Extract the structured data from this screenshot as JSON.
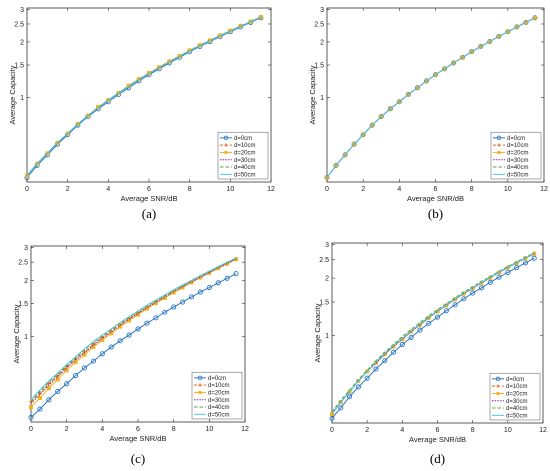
{
  "colors": {
    "d0": "#2a78c2",
    "d10": "#e8641e",
    "d20": "#f2b21a",
    "d30": "#7e2f8e",
    "d40": "#59a63a",
    "d50": "#4dc8ea"
  },
  "chart_data": [
    {
      "type": "line",
      "caption": "(a)",
      "xlabel": "Average SNR/dB",
      "ylabel": "Average Capacity",
      "xlim": [
        0,
        12
      ],
      "ylim": [
        0.35,
        3.05
      ],
      "y_scale": "log",
      "xticks": [
        0,
        2,
        4,
        6,
        8,
        10,
        12
      ],
      "yticks": [
        1,
        1.5,
        2,
        2.5,
        3
      ],
      "legend_position": "bottom-right",
      "x": [
        0,
        0.5,
        1,
        1.5,
        2,
        2.5,
        3,
        3.5,
        4,
        4.5,
        5,
        5.5,
        6,
        6.5,
        7,
        7.5,
        8,
        8.5,
        9,
        9.5,
        10,
        10.5,
        11,
        11.5
      ],
      "series": [
        {
          "name": "d=0cm",
          "values": [
            0.37,
            0.43,
            0.49,
            0.56,
            0.63,
            0.71,
            0.79,
            0.87,
            0.95,
            1.04,
            1.13,
            1.23,
            1.33,
            1.43,
            1.54,
            1.65,
            1.77,
            1.89,
            2.01,
            2.14,
            2.27,
            2.41,
            2.55,
            2.7
          ]
        },
        {
          "name": "d=10cm",
          "values": [
            0.38,
            0.44,
            0.5,
            0.57,
            0.64,
            0.72,
            0.8,
            0.89,
            0.97,
            1.06,
            1.16,
            1.26,
            1.36,
            1.46,
            1.57,
            1.68,
            1.8,
            1.92,
            2.04,
            2.17,
            2.3,
            2.44,
            2.58,
            2.73
          ]
        },
        {
          "name": "d=20cm",
          "values": [
            0.38,
            0.44,
            0.5,
            0.57,
            0.64,
            0.72,
            0.8,
            0.89,
            0.97,
            1.06,
            1.16,
            1.26,
            1.36,
            1.46,
            1.57,
            1.68,
            1.8,
            1.92,
            2.04,
            2.17,
            2.3,
            2.44,
            2.58,
            2.73
          ]
        },
        {
          "name": "d=30cm",
          "values": [
            0.38,
            0.44,
            0.5,
            0.57,
            0.64,
            0.72,
            0.8,
            0.88,
            0.97,
            1.06,
            1.15,
            1.25,
            1.35,
            1.45,
            1.56,
            1.67,
            1.79,
            1.91,
            2.03,
            2.16,
            2.29,
            2.43,
            2.57,
            2.72
          ]
        },
        {
          "name": "d=40cm",
          "values": [
            0.38,
            0.44,
            0.5,
            0.57,
            0.64,
            0.72,
            0.8,
            0.88,
            0.97,
            1.06,
            1.15,
            1.25,
            1.35,
            1.45,
            1.56,
            1.67,
            1.79,
            1.91,
            2.03,
            2.16,
            2.29,
            2.43,
            2.57,
            2.72
          ]
        },
        {
          "name": "d=50cm",
          "values": [
            0.38,
            0.44,
            0.5,
            0.57,
            0.64,
            0.72,
            0.8,
            0.88,
            0.97,
            1.06,
            1.15,
            1.25,
            1.35,
            1.45,
            1.56,
            1.67,
            1.79,
            1.91,
            2.03,
            2.16,
            2.29,
            2.43,
            2.57,
            2.72
          ]
        }
      ]
    },
    {
      "type": "line",
      "caption": "(b)",
      "xlabel": "Average SNR/dB",
      "ylabel": "Average Capacity",
      "xlim": [
        0,
        12
      ],
      "ylim": [
        0.35,
        3.05
      ],
      "y_scale": "log",
      "xticks": [
        0,
        2,
        4,
        6,
        8,
        10,
        12
      ],
      "yticks": [
        1,
        1.5,
        2,
        2.5,
        3
      ],
      "legend_position": "bottom-right",
      "x": [
        0,
        0.5,
        1,
        1.5,
        2,
        2.5,
        3,
        3.5,
        4,
        4.5,
        5,
        5.5,
        6,
        6.5,
        7,
        7.5,
        8,
        8.5,
        9,
        9.5,
        10,
        10.5,
        11,
        11.5
      ],
      "series": [
        {
          "name": "d=0cm",
          "values": [
            0.37,
            0.43,
            0.49,
            0.56,
            0.63,
            0.71,
            0.79,
            0.87,
            0.95,
            1.04,
            1.13,
            1.23,
            1.33,
            1.43,
            1.54,
            1.65,
            1.77,
            1.89,
            2.01,
            2.14,
            2.27,
            2.41,
            2.55,
            2.7
          ]
        },
        {
          "name": "d=10cm",
          "values": [
            0.37,
            0.43,
            0.49,
            0.56,
            0.63,
            0.71,
            0.79,
            0.87,
            0.95,
            1.04,
            1.13,
            1.23,
            1.33,
            1.43,
            1.54,
            1.65,
            1.77,
            1.89,
            2.01,
            2.14,
            2.27,
            2.41,
            2.55,
            2.7
          ]
        },
        {
          "name": "d=20cm",
          "values": [
            0.37,
            0.43,
            0.49,
            0.56,
            0.63,
            0.71,
            0.79,
            0.87,
            0.95,
            1.04,
            1.13,
            1.23,
            1.33,
            1.43,
            1.54,
            1.65,
            1.77,
            1.89,
            2.01,
            2.14,
            2.27,
            2.41,
            2.55,
            2.7
          ]
        },
        {
          "name": "d=30cm",
          "values": [
            0.37,
            0.43,
            0.49,
            0.56,
            0.63,
            0.71,
            0.79,
            0.87,
            0.95,
            1.04,
            1.13,
            1.23,
            1.33,
            1.43,
            1.54,
            1.65,
            1.77,
            1.89,
            2.01,
            2.14,
            2.27,
            2.41,
            2.55,
            2.7
          ]
        },
        {
          "name": "d=40cm",
          "values": [
            0.37,
            0.43,
            0.49,
            0.56,
            0.63,
            0.71,
            0.79,
            0.87,
            0.95,
            1.04,
            1.13,
            1.23,
            1.33,
            1.43,
            1.54,
            1.65,
            1.77,
            1.89,
            2.01,
            2.14,
            2.27,
            2.41,
            2.55,
            2.7
          ]
        },
        {
          "name": "d=50cm",
          "values": [
            0.37,
            0.43,
            0.49,
            0.56,
            0.63,
            0.71,
            0.79,
            0.87,
            0.95,
            1.04,
            1.13,
            1.23,
            1.33,
            1.43,
            1.54,
            1.65,
            1.77,
            1.89,
            2.01,
            2.14,
            2.27,
            2.41,
            2.55,
            2.7
          ]
        }
      ]
    },
    {
      "type": "line",
      "caption": "(c)",
      "xlabel": "Average SNR/dB",
      "ylabel": "Average Capacity",
      "xlim": [
        0,
        12
      ],
      "ylim": [
        0.35,
        3.05
      ],
      "y_scale": "log",
      "xticks": [
        0,
        2,
        4,
        6,
        8,
        10,
        12
      ],
      "yticks": [
        1,
        1.5,
        2,
        2.5,
        3
      ],
      "legend_position": "bottom-right",
      "x": [
        0,
        0.5,
        1,
        1.5,
        2,
        2.5,
        3,
        3.5,
        4,
        4.5,
        5,
        5.5,
        6,
        6.5,
        7,
        7.5,
        8,
        8.5,
        9,
        9.5,
        10,
        10.5,
        11,
        11.5
      ],
      "series": [
        {
          "name": "d=0cm",
          "values": [
            0.37,
            0.41,
            0.46,
            0.51,
            0.56,
            0.62,
            0.68,
            0.74,
            0.81,
            0.88,
            0.95,
            1.02,
            1.1,
            1.18,
            1.26,
            1.35,
            1.44,
            1.53,
            1.63,
            1.73,
            1.83,
            1.94,
            2.05,
            2.17
          ]
        },
        {
          "name": "d=10cm",
          "values": [
            0.45,
            0.5,
            0.56,
            0.62,
            0.69,
            0.76,
            0.83,
            0.91,
            0.99,
            1.07,
            1.16,
            1.25,
            1.34,
            1.43,
            1.53,
            1.63,
            1.74,
            1.85,
            1.96,
            2.08,
            2.2,
            2.33,
            2.46,
            2.6
          ]
        },
        {
          "name": "d=20cm",
          "values": [
            0.42,
            0.47,
            0.53,
            0.59,
            0.66,
            0.73,
            0.8,
            0.88,
            0.96,
            1.04,
            1.13,
            1.22,
            1.31,
            1.41,
            1.51,
            1.61,
            1.72,
            1.83,
            1.95,
            2.07,
            2.19,
            2.32,
            2.45,
            2.59
          ]
        },
        {
          "name": "d=30cm",
          "values": [
            0.44,
            0.49,
            0.55,
            0.61,
            0.68,
            0.75,
            0.82,
            0.9,
            0.98,
            1.06,
            1.15,
            1.24,
            1.33,
            1.43,
            1.53,
            1.63,
            1.74,
            1.85,
            1.96,
            2.08,
            2.2,
            2.33,
            2.46,
            2.6
          ]
        },
        {
          "name": "d=40cm",
          "values": [
            0.45,
            0.51,
            0.57,
            0.63,
            0.7,
            0.77,
            0.85,
            0.93,
            1.01,
            1.09,
            1.18,
            1.27,
            1.36,
            1.46,
            1.56,
            1.66,
            1.77,
            1.88,
            1.99,
            2.11,
            2.23,
            2.36,
            2.49,
            2.62
          ]
        },
        {
          "name": "d=50cm",
          "values": [
            0.46,
            0.52,
            0.58,
            0.64,
            0.71,
            0.78,
            0.86,
            0.94,
            1.02,
            1.1,
            1.19,
            1.28,
            1.37,
            1.47,
            1.57,
            1.67,
            1.78,
            1.89,
            2.0,
            2.12,
            2.24,
            2.37,
            2.5,
            2.63
          ]
        }
      ]
    },
    {
      "type": "line",
      "caption": "(d)",
      "xlabel": "Average SNR/dB",
      "ylabel": "Average Capacity",
      "xlim": [
        0,
        12
      ],
      "ylim": [
        0.35,
        3.05
      ],
      "y_scale": "log",
      "xticks": [
        0,
        2,
        4,
        6,
        8,
        10,
        12
      ],
      "yticks": [
        1,
        1.5,
        2,
        2.5,
        3
      ],
      "legend_position": "bottom-right",
      "x": [
        0,
        0.5,
        1,
        1.5,
        2,
        2.5,
        3,
        3.5,
        4,
        4.5,
        5,
        5.5,
        6,
        6.5,
        7,
        7.5,
        8,
        8.5,
        9,
        9.5,
        10,
        10.5,
        11,
        11.5
      ],
      "series": [
        {
          "name": "d=0cm",
          "values": [
            0.37,
            0.42,
            0.48,
            0.54,
            0.6,
            0.67,
            0.74,
            0.82,
            0.9,
            0.98,
            1.07,
            1.16,
            1.25,
            1.35,
            1.45,
            1.56,
            1.67,
            1.78,
            1.9,
            2.02,
            2.14,
            2.27,
            2.4,
            2.54
          ]
        },
        {
          "name": "d=10cm",
          "values": [
            0.39,
            0.45,
            0.51,
            0.58,
            0.65,
            0.72,
            0.8,
            0.88,
            0.96,
            1.05,
            1.14,
            1.24,
            1.34,
            1.44,
            1.55,
            1.66,
            1.77,
            1.89,
            2.01,
            2.14,
            2.27,
            2.4,
            2.54,
            2.68
          ]
        },
        {
          "name": "d=20cm",
          "values": [
            0.39,
            0.45,
            0.51,
            0.58,
            0.65,
            0.72,
            0.8,
            0.88,
            0.96,
            1.05,
            1.14,
            1.24,
            1.34,
            1.44,
            1.55,
            1.66,
            1.77,
            1.89,
            2.01,
            2.14,
            2.27,
            2.4,
            2.54,
            2.68
          ]
        },
        {
          "name": "d=30cm",
          "values": [
            0.39,
            0.45,
            0.51,
            0.58,
            0.65,
            0.72,
            0.8,
            0.88,
            0.96,
            1.05,
            1.14,
            1.24,
            1.34,
            1.44,
            1.55,
            1.66,
            1.77,
            1.89,
            2.01,
            2.14,
            2.27,
            2.4,
            2.54,
            2.68
          ]
        },
        {
          "name": "d=40cm",
          "values": [
            0.4,
            0.46,
            0.52,
            0.59,
            0.66,
            0.74,
            0.82,
            0.9,
            0.99,
            1.08,
            1.17,
            1.27,
            1.37,
            1.47,
            1.58,
            1.69,
            1.8,
            1.92,
            2.04,
            2.17,
            2.3,
            2.43,
            2.57,
            2.71
          ]
        },
        {
          "name": "d=50cm",
          "values": [
            0.39,
            0.45,
            0.51,
            0.58,
            0.65,
            0.73,
            0.81,
            0.89,
            0.97,
            1.06,
            1.15,
            1.25,
            1.35,
            1.45,
            1.56,
            1.67,
            1.78,
            1.9,
            2.02,
            2.15,
            2.28,
            2.41,
            2.55,
            2.69
          ]
        }
      ]
    }
  ]
}
